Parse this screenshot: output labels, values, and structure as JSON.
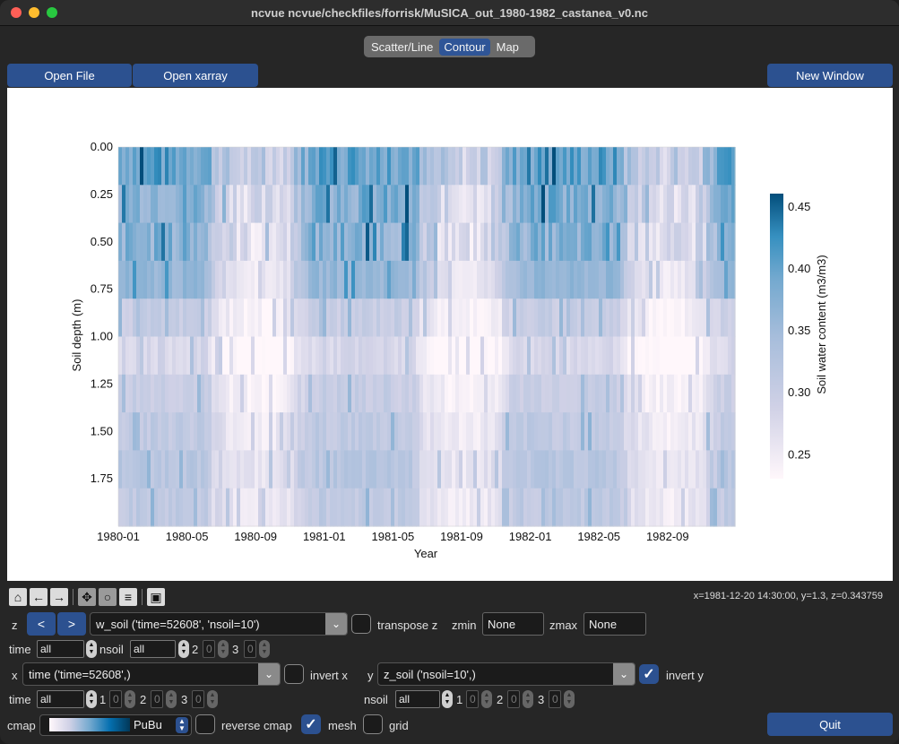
{
  "window": {
    "title": "ncvue ncvue/checkfiles/forrisk/MuSICA_out_1980-1982_castanea_v0.nc"
  },
  "tabs": [
    {
      "label": "Scatter/Line",
      "active": false
    },
    {
      "label": "Contour",
      "active": true
    },
    {
      "label": "Map",
      "active": false
    }
  ],
  "buttons": {
    "open_file": "Open File",
    "open_xarray": "Open xarray",
    "new_window": "New Window",
    "quit": "Quit",
    "prev": "<",
    "next": ">"
  },
  "chart_data": {
    "type": "heatmap",
    "xlabel": "Year",
    "ylabel": "Soil depth (m)",
    "colorbar_label": "Soil water content (m3/m3)",
    "colormap": "PuBu",
    "x_ticks": [
      "1980-01",
      "1980-05",
      "1980-09",
      "1981-01",
      "1981-05",
      "1981-09",
      "1982-01",
      "1982-05",
      "1982-09"
    ],
    "y_ticks": [
      "0.00",
      "0.25",
      "0.50",
      "0.75",
      "1.00",
      "1.25",
      "1.50",
      "1.75"
    ],
    "y_inverted": true,
    "ylim": [
      0.0,
      2.0
    ],
    "colorbar_ticks": [
      "0.45",
      "0.40",
      "0.35",
      "0.30",
      "0.25"
    ],
    "colorbar_range": [
      0.23,
      0.46
    ],
    "soil_layers": 10,
    "layer_base_values": [
      0.4,
      0.38,
      0.37,
      0.36,
      0.3,
      0.28,
      0.3,
      0.31,
      0.32,
      0.31
    ]
  },
  "toolbar": {
    "icons": [
      "home-icon",
      "back-icon",
      "forward-icon",
      "pan-icon",
      "zoom-icon",
      "configure-icon",
      "save-icon"
    ],
    "coords": "x=1981-12-20 14:30:00, y=1.3, z=0.343759"
  },
  "z_row": {
    "label": "z",
    "variable": "w_soil ('time=52608', 'nsoil=10')",
    "transpose_label": "transpose z",
    "zmin_label": "zmin",
    "zmin_value": "None",
    "zmax_label": "zmax",
    "zmax_value": "None"
  },
  "z_dims": {
    "time_label": "time",
    "time_value": "all",
    "nsoil_label": "nsoil",
    "nsoil_value": "all",
    "d2_label": "2",
    "d2_value": "0",
    "d3_label": "3",
    "d3_value": "0"
  },
  "x_row": {
    "label": "x",
    "variable": "time ('time=52608',)",
    "invert_label": "invert x"
  },
  "y_row": {
    "label": "y",
    "variable": "z_soil ('nsoil=10',)",
    "invert_label": "invert y"
  },
  "x_dims": {
    "time_label": "time",
    "time_value": "all",
    "d1_label": "1",
    "d1_value": "0",
    "d2_label": "2",
    "d2_value": "0",
    "d3_label": "3",
    "d3_value": "0"
  },
  "y_dims": {
    "nsoil_label": "nsoil",
    "nsoil_value": "all",
    "d1_label": "1",
    "d1_value": "0",
    "d2_label": "2",
    "d2_value": "0",
    "d3_label": "3",
    "d3_value": "0"
  },
  "cmap_row": {
    "label": "cmap",
    "value": "PuBu",
    "reverse_label": "reverse cmap",
    "mesh_label": "mesh",
    "grid_label": "grid"
  }
}
